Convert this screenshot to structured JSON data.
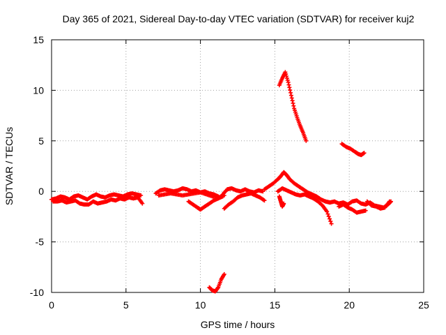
{
  "chart_data": {
    "type": "scatter",
    "title": "Day 365 of 2021, Sidereal Day-to-day VTEC variation (SDTVAR) for receiver kuj2",
    "xlabel": "GPS time / hours",
    "ylabel": "SDTVAR / TECUs",
    "xlim": [
      0,
      25
    ],
    "ylim": [
      -10,
      15
    ],
    "xticks": [
      0,
      5,
      10,
      15,
      20,
      25
    ],
    "yticks": [
      -10,
      -5,
      0,
      5,
      10,
      15
    ],
    "grid": true,
    "marker": "+",
    "series": [
      {
        "name": "SDTVAR",
        "color": "#ff0000",
        "segments": [
          {
            "x": [
              0.0,
              0.3,
              0.6,
              0.9,
              1.2,
              1.5,
              1.8,
              2.1,
              2.4,
              2.7,
              3.0,
              3.3,
              3.6,
              3.9,
              4.2,
              4.5,
              4.8,
              5.1,
              5.4,
              5.7,
              6.0
            ],
            "y": [
              -0.8,
              -0.7,
              -0.5,
              -0.6,
              -0.8,
              -0.5,
              -0.4,
              -0.6,
              -0.8,
              -0.5,
              -0.3,
              -0.5,
              -0.6,
              -0.4,
              -0.3,
              -0.4,
              -0.5,
              -0.3,
              -0.2,
              -0.3,
              -0.4
            ]
          },
          {
            "x": [
              0.1,
              0.4,
              0.7,
              1.0,
              1.3,
              1.6,
              1.9,
              2.2,
              2.5,
              2.8,
              3.1,
              3.4,
              3.7,
              4.0,
              4.3,
              4.6,
              4.9,
              5.2,
              5.5,
              5.8,
              6.1
            ],
            "y": [
              -1.0,
              -1.0,
              -0.9,
              -1.1,
              -1.0,
              -0.9,
              -1.2,
              -1.3,
              -1.3,
              -1.0,
              -1.2,
              -1.1,
              -1.0,
              -0.8,
              -0.9,
              -0.7,
              -0.8,
              -0.6,
              -0.7,
              -0.6,
              -1.2
            ]
          },
          {
            "x": [
              7.0,
              7.3,
              7.6,
              7.9,
              8.2,
              8.5,
              8.8,
              9.1,
              9.4,
              9.7,
              10.0,
              10.3,
              10.6,
              10.9,
              11.2
            ],
            "y": [
              -0.2,
              0.1,
              0.2,
              0.1,
              0.0,
              0.1,
              0.3,
              0.2,
              0.0,
              0.1,
              -0.1,
              0.0,
              -0.2,
              -0.3,
              -0.5
            ]
          },
          {
            "x": [
              7.2,
              7.6,
              8.0,
              8.4,
              8.8,
              9.2,
              9.6,
              10.0,
              10.4,
              10.8,
              11.2,
              11.6
            ],
            "y": [
              -0.4,
              -0.3,
              -0.2,
              -0.3,
              -0.4,
              -0.3,
              -0.2,
              -0.1,
              -0.3,
              -0.5,
              -0.6,
              -0.4
            ]
          },
          {
            "x": [
              9.2,
              9.5,
              9.8,
              10.0,
              10.3,
              10.6,
              10.9,
              11.2,
              11.5
            ],
            "y": [
              -1.0,
              -1.3,
              -1.6,
              -1.8,
              -1.5,
              -1.2,
              -0.9,
              -0.7,
              -0.5
            ]
          },
          {
            "x": [
              11.5,
              11.8,
              12.1,
              12.4,
              12.7,
              13.0,
              13.3,
              13.6,
              13.9,
              14.2
            ],
            "y": [
              -0.3,
              0.2,
              0.3,
              0.1,
              0.0,
              0.2,
              0.0,
              -0.1,
              0.1,
              0.0
            ]
          },
          {
            "x": [
              11.6,
              11.9,
              12.2,
              12.5,
              12.8,
              13.1,
              13.4,
              13.7,
              14.0,
              14.3
            ],
            "y": [
              -1.7,
              -1.3,
              -1.0,
              -0.6,
              -0.4,
              -0.3,
              -0.2,
              -0.4,
              -0.6,
              -0.9
            ]
          },
          {
            "x": [
              14.3,
              14.6,
              14.9,
              15.2,
              15.4,
              15.6,
              15.8,
              16.0,
              16.3,
              16.6,
              16.9,
              17.2,
              17.5,
              17.8,
              18.1,
              18.4,
              18.7
            ],
            "y": [
              0.2,
              0.5,
              0.8,
              1.2,
              1.5,
              1.9,
              1.6,
              1.2,
              0.8,
              0.5,
              0.2,
              -0.1,
              -0.3,
              -0.5,
              -0.8,
              -1.0,
              -1.1
            ]
          },
          {
            "x": [
              15.2,
              15.5,
              15.8,
              16.1,
              16.4,
              16.7,
              17.0,
              17.3,
              17.6,
              17.9,
              18.2,
              18.5,
              18.8
            ],
            "y": [
              0.0,
              0.3,
              0.1,
              -0.1,
              -0.3,
              -0.4,
              -0.3,
              -0.5,
              -0.7,
              -1.0,
              -1.4,
              -2.0,
              -3.2
            ]
          },
          {
            "x": [
              15.3,
              15.4,
              15.5,
              15.6
            ],
            "y": [
              -0.5,
              -1.0,
              -1.5,
              -1.2
            ]
          },
          {
            "x": [
              15.3,
              15.5,
              15.7,
              15.9,
              16.1,
              16.3,
              16.5,
              16.7,
              16.9,
              17.1
            ],
            "y": [
              10.5,
              11.2,
              11.8,
              10.8,
              9.5,
              8.2,
              7.3,
              6.5,
              5.8,
              5.0
            ]
          },
          {
            "x": [
              18.4,
              18.7,
              19.0,
              19.3,
              19.6,
              19.9,
              20.2,
              20.5,
              20.8,
              21.1,
              21.4,
              21.7,
              22.0,
              22.3,
              22.6,
              22.8
            ],
            "y": [
              -1.0,
              -1.1,
              -1.0,
              -1.2,
              -1.1,
              -1.3,
              -1.0,
              -0.9,
              -1.2,
              -1.3,
              -1.1,
              -1.4,
              -1.5,
              -1.6,
              -1.3,
              -1.0
            ]
          },
          {
            "x": [
              19.3,
              19.6,
              19.9,
              20.2,
              20.5,
              20.8,
              21.1
            ],
            "y": [
              -1.5,
              -1.3,
              -1.6,
              -1.8,
              -2.1,
              -2.0,
              -1.9
            ]
          },
          {
            "x": [
              21.2,
              21.5,
              21.8,
              22.1,
              22.4,
              22.7
            ],
            "y": [
              -1.0,
              -1.4,
              -1.5,
              -1.7,
              -1.6,
              -1.0
            ]
          },
          {
            "x": [
              19.5,
              19.8,
              20.1,
              20.4,
              20.6,
              20.8,
              21.0
            ],
            "y": [
              4.7,
              4.4,
              4.2,
              3.9,
              3.7,
              3.6,
              3.8
            ]
          },
          {
            "x": [
              10.6,
              10.8,
              11.0,
              11.2,
              11.4,
              11.6
            ],
            "y": [
              -9.5,
              -9.8,
              -9.9,
              -9.5,
              -8.7,
              -8.2
            ]
          }
        ]
      }
    ]
  }
}
